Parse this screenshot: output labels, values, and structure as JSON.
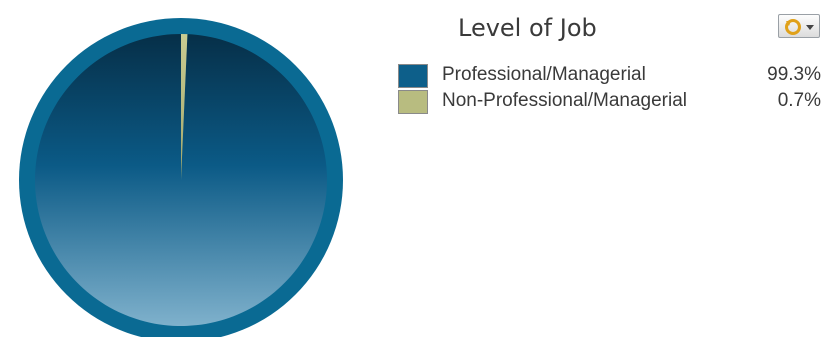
{
  "chart_data": {
    "type": "pie",
    "title": "Level of Job",
    "categories": [
      "Professional/Managerial",
      "Non-Professional/Managerial"
    ],
    "values": [
      99.3,
      0.7
    ],
    "value_labels": [
      "99.3%",
      "0.7%"
    ],
    "colors": [
      "#0d5f8a",
      "#b8bc80"
    ],
    "legend_placement": "right"
  },
  "controls": {
    "menu_icon": "refresh-dropdown-icon"
  }
}
